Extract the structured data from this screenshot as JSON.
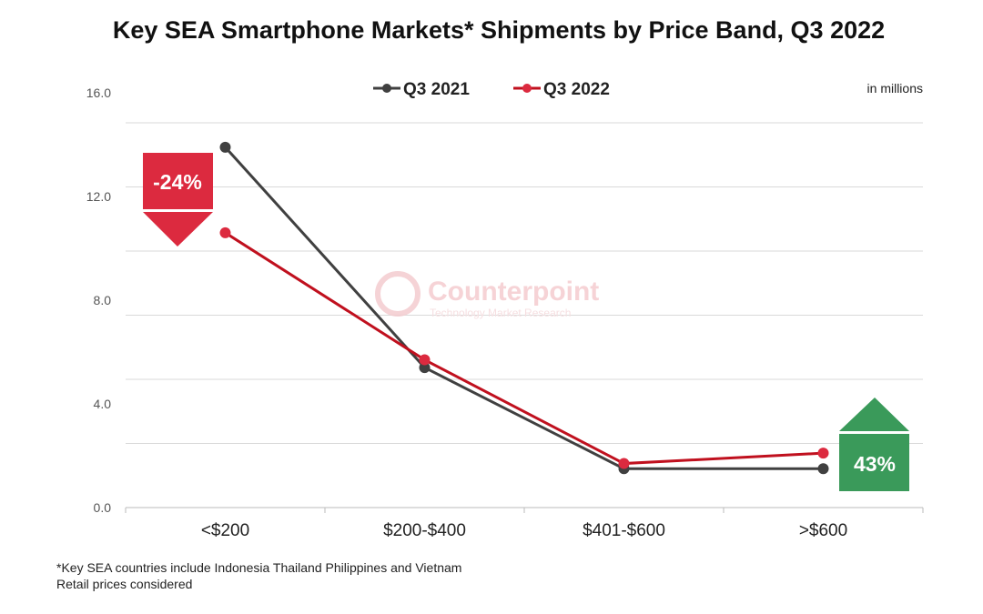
{
  "chart_data": {
    "type": "line",
    "title": "Key SEA Smartphone Markets* Shipments by Price Band, Q3 2022",
    "unit_note": "in millions",
    "categories": [
      "<$200",
      "$200-$400",
      "$401-$600",
      ">$600"
    ],
    "series": [
      {
        "name": "Q3 2021",
        "color": "#404040",
        "values": [
          13.9,
          5.4,
          1.5,
          1.5
        ]
      },
      {
        "name": "Q3 2022",
        "color": "#c0101e",
        "values": [
          10.6,
          5.7,
          1.7,
          2.1
        ]
      }
    ],
    "yticks": [
      "0.0",
      "4.0",
      "8.0",
      "12.0",
      "16.0"
    ],
    "ylim": [
      0,
      16
    ],
    "legend": "top",
    "grid": true,
    "annotations": [
      {
        "text": "-24%",
        "direction": "down",
        "color": "#dc2a3f",
        "category": "<$200"
      },
      {
        "text": "43%",
        "direction": "up",
        "color": "#3a9a5a",
        "category": ">$600"
      }
    ],
    "watermark": {
      "name": "Counterpoint",
      "tagline": "Technology Market Research"
    },
    "footnotes": [
      "*Key SEA countries include Indonesia Thailand Philippines and Vietnam",
      "Retail prices considered"
    ]
  }
}
